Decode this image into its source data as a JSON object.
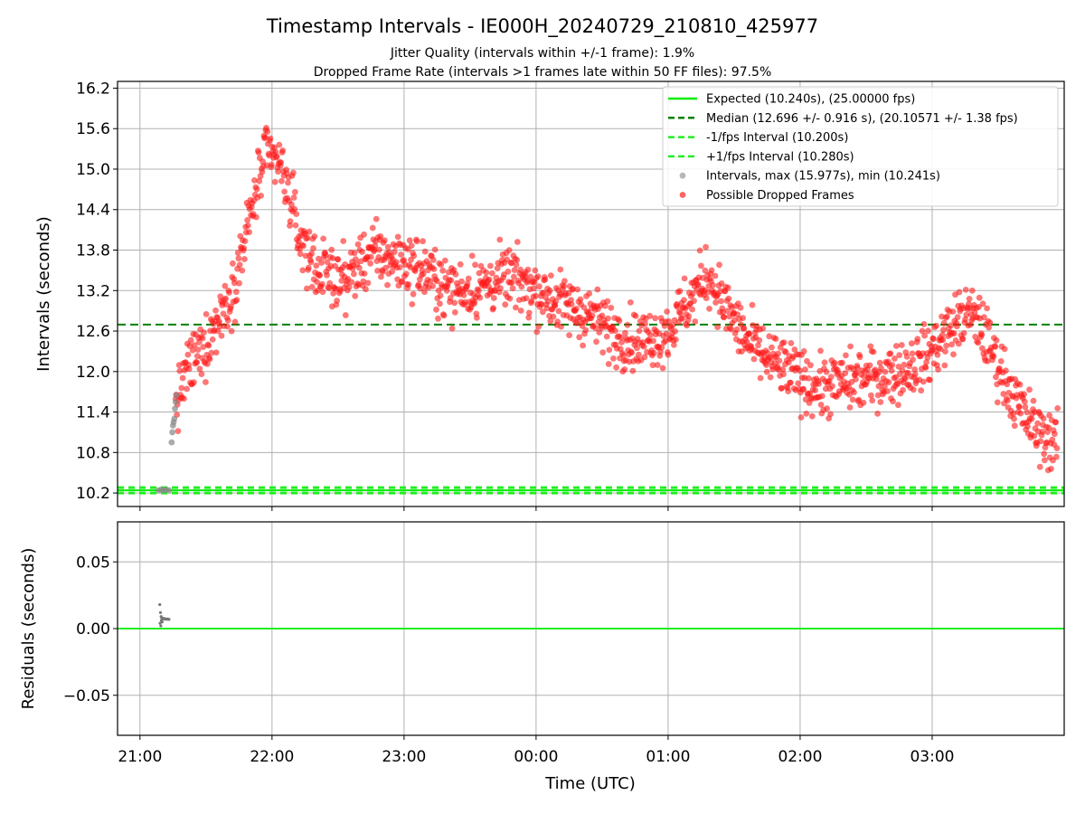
{
  "chart_data": [
    {
      "type": "scatter",
      "title": "Timestamp Intervals - IE000H_20240729_210810_425977",
      "subtitle_lines": [
        "Jitter Quality (intervals within +/-1 frame): 1.9%",
        "Dropped Frame Rate (intervals >1 frames late within 50 FF files): 97.5%"
      ],
      "xlabel": "",
      "ylabel": "Intervals (seconds)",
      "xlim_hours": [
        20.83,
        28.0
      ],
      "ylim": [
        10.0,
        16.3
      ],
      "yticks": [
        "10.2",
        "10.8",
        "11.4",
        "12.0",
        "12.6",
        "13.2",
        "13.8",
        "14.4",
        "15.0",
        "15.6",
        "16.2"
      ],
      "grid": true,
      "legend_position": "top-right",
      "legend": [
        {
          "label": "Expected (10.240s), (25.00000 fps)",
          "kind": "solid-line",
          "color": "#00ee00"
        },
        {
          "label": "Median (12.696 +/- 0.916 s), (20.10571 +/- 1.38 fps)",
          "kind": "dashed-line",
          "color": "#008000"
        },
        {
          "label": "-1/fps Interval (10.200s)",
          "kind": "dashed-line",
          "color": "#22ee22"
        },
        {
          "label": "+1/fps Interval (10.280s)",
          "kind": "dashed-line",
          "color": "#22ee22"
        },
        {
          "label": "Intervals, max (15.977s), min (10.241s)",
          "kind": "marker",
          "color": "#999999"
        },
        {
          "label": "Possible Dropped Frames",
          "kind": "marker",
          "color": "#ff2020"
        }
      ],
      "lines": {
        "expected": 10.24,
        "median": 12.696,
        "minus_fps": 10.2,
        "plus_fps": 10.28
      },
      "intervals_series": {
        "name": "Intervals, max (15.977s), min (10.241s)",
        "points": [
          [
            21.14,
            10.24
          ],
          [
            21.16,
            10.25
          ],
          [
            21.18,
            10.24
          ],
          [
            21.2,
            10.25
          ],
          [
            21.22,
            10.24
          ],
          [
            21.24,
            10.95
          ],
          [
            21.245,
            11.1
          ],
          [
            21.25,
            11.2
          ],
          [
            21.255,
            11.25
          ],
          [
            21.26,
            11.3
          ],
          [
            21.265,
            11.45
          ],
          [
            21.27,
            11.55
          ],
          [
            21.275,
            11.65
          ]
        ]
      },
      "dropped_series": {
        "name": "Possible Dropped Frames",
        "trend": [
          [
            21.27,
            11.45
          ],
          [
            21.35,
            12.0
          ],
          [
            21.5,
            12.4
          ],
          [
            21.6,
            12.8
          ],
          [
            21.7,
            13.2
          ],
          [
            21.8,
            14.0
          ],
          [
            21.88,
            14.7
          ],
          [
            21.95,
            15.2
          ],
          [
            22.05,
            15.1
          ],
          [
            22.15,
            14.5
          ],
          [
            22.2,
            14.0
          ],
          [
            22.35,
            13.5
          ],
          [
            22.55,
            13.35
          ],
          [
            22.75,
            13.75
          ],
          [
            22.95,
            13.65
          ],
          [
            23.15,
            13.5
          ],
          [
            23.35,
            13.2
          ],
          [
            23.55,
            13.25
          ],
          [
            23.8,
            13.4
          ],
          [
            24.0,
            13.2
          ],
          [
            24.2,
            13.0
          ],
          [
            24.4,
            12.85
          ],
          [
            24.6,
            12.55
          ],
          [
            24.8,
            12.45
          ],
          [
            25.0,
            12.6
          ],
          [
            25.2,
            13.15
          ],
          [
            25.3,
            13.45
          ],
          [
            25.45,
            12.9
          ],
          [
            25.6,
            12.45
          ],
          [
            25.75,
            12.2
          ],
          [
            25.95,
            11.95
          ],
          [
            26.15,
            11.75
          ],
          [
            26.35,
            11.85
          ],
          [
            26.55,
            11.9
          ],
          [
            26.75,
            12.0
          ],
          [
            26.95,
            12.2
          ],
          [
            27.1,
            12.55
          ],
          [
            27.25,
            12.85
          ],
          [
            27.35,
            12.75
          ],
          [
            27.5,
            12.1
          ],
          [
            27.65,
            11.5
          ],
          [
            27.8,
            11.1
          ],
          [
            27.95,
            10.95
          ]
        ],
        "spread": 0.22,
        "max": 15.977
      }
    },
    {
      "type": "scatter",
      "xlabel": "Time (UTC)",
      "ylabel": "Residuals (seconds)",
      "xlim_hours": [
        20.83,
        28.0
      ],
      "ylim": [
        -0.08,
        0.08
      ],
      "yticks": [
        "0.05",
        "0.00",
        "−0.05"
      ],
      "ytick_values": [
        0.05,
        0.0,
        -0.05
      ],
      "xticks": [
        "21:00",
        "22:00",
        "23:00",
        "00:00",
        "01:00",
        "02:00",
        "03:00"
      ],
      "xtick_hours": [
        21,
        22,
        23,
        24,
        25,
        26,
        27
      ],
      "grid": true,
      "zero_line_color": "#22ee22",
      "points": [
        [
          21.15,
          0.018
        ],
        [
          21.155,
          0.012
        ],
        [
          21.16,
          0.009
        ],
        [
          21.165,
          0.008
        ],
        [
          21.17,
          0.0075
        ],
        [
          21.175,
          0.0078
        ],
        [
          21.18,
          0.0072
        ],
        [
          21.185,
          0.0074
        ],
        [
          21.19,
          0.0071
        ],
        [
          21.195,
          0.0073
        ],
        [
          21.2,
          0.007
        ],
        [
          21.205,
          0.0072
        ],
        [
          21.21,
          0.0071
        ],
        [
          21.215,
          0.0069
        ],
        [
          21.22,
          0.007
        ],
        [
          21.152,
          0.004
        ],
        [
          21.158,
          0.002
        ],
        [
          21.162,
          0.006
        ],
        [
          21.168,
          0.005
        ]
      ]
    }
  ]
}
